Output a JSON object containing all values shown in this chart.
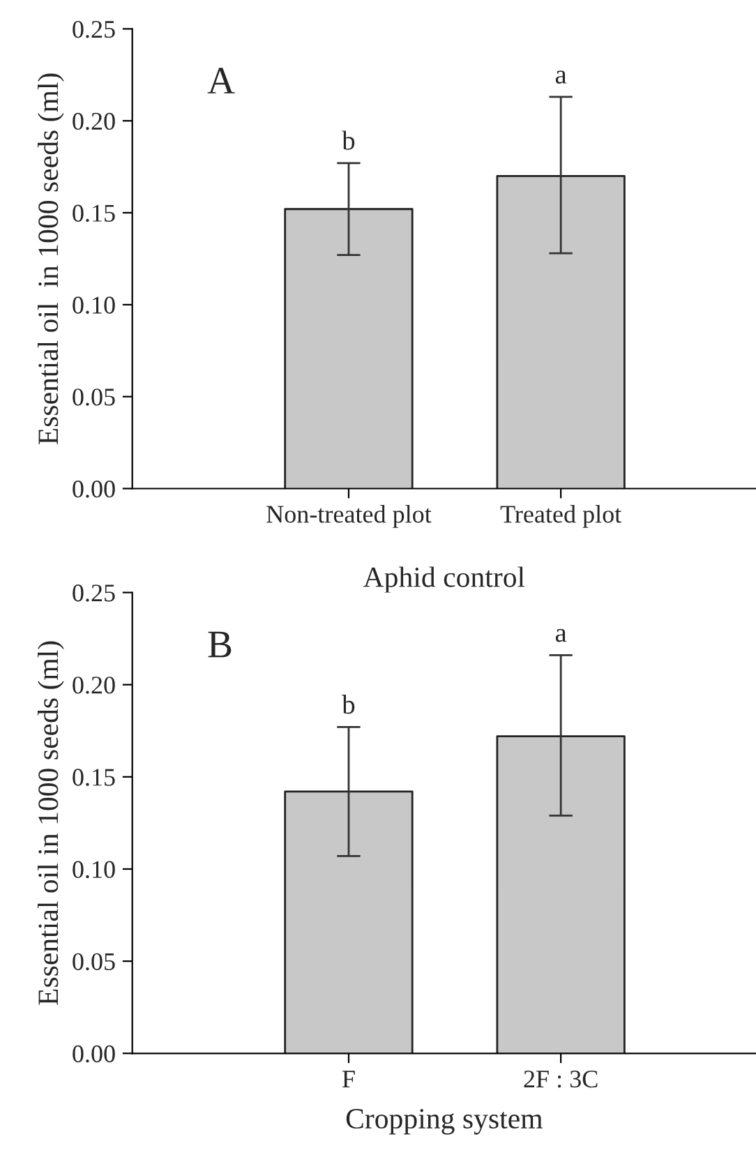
{
  "chart_data": [
    {
      "type": "bar",
      "xlabel": "Aphid control",
      "ylabel": "Essential oil  in 1000 seeds (ml)",
      "categories": [
        "Non-treated plot",
        "Treated plot"
      ],
      "values": [
        0.152,
        0.17
      ],
      "colors": [
        "#c8c8c8",
        "#c8c8c8"
      ],
      "errors": [
        [
          0.127,
          0.177
        ],
        [
          0.128,
          0.213
        ]
      ],
      "ylim": [
        0,
        0.25
      ],
      "yticks": [
        {
          "value": 0,
          "label": "0.00"
        },
        {
          "value": 0.05,
          "label": "0.05"
        },
        {
          "value": 0.1,
          "label": "0.10"
        },
        {
          "value": 0.15,
          "label": "0.15"
        },
        {
          "value": 0.2,
          "label": "0.20"
        },
        {
          "value": 0.25,
          "label": "0.25"
        }
      ],
      "grid": false,
      "legend": false,
      "annotations": [
        "A",
        {
          "text": "b",
          "x": "Non-treated plot",
          "y": 0.177
        },
        {
          "text": "a",
          "x": "Treated plot",
          "y": 0.213
        }
      ]
    },
    {
      "type": "bar",
      "xlabel": "Cropping system",
      "ylabel": "Essential oil in 1000 seeds (ml)",
      "categories": [
        "F",
        "2F : 3C"
      ],
      "values": [
        0.142,
        0.172
      ],
      "colors": [
        "#c8c8c8",
        "#c8c8c8"
      ],
      "errors": [
        [
          0.107,
          0.177
        ],
        [
          0.129,
          0.216
        ]
      ],
      "ylim": [
        0,
        0.25
      ],
      "yticks": [
        {
          "value": 0,
          "label": "0.00"
        },
        {
          "value": 0.05,
          "label": "0.05"
        },
        {
          "value": 0.1,
          "label": "0.10"
        },
        {
          "value": 0.15,
          "label": "0.15"
        },
        {
          "value": 0.2,
          "label": "0.20"
        },
        {
          "value": 0.25,
          "label": "0.25"
        }
      ],
      "grid": false,
      "legend": false,
      "annotations": [
        "B",
        {
          "text": "b",
          "x": "F",
          "y": 0.177
        },
        {
          "text": "a",
          "x": "2F : 3C",
          "y": 0.216
        }
      ]
    }
  ]
}
